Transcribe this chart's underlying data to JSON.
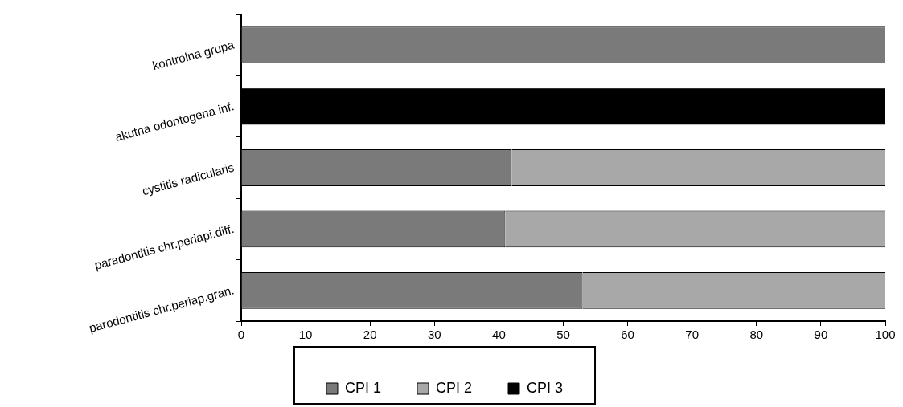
{
  "chart_data": {
    "type": "bar",
    "orientation": "horizontal",
    "stacked": true,
    "categories": [
      "kontrolna grupa",
      "akutna odontogena inf.",
      "cystitis radicularis",
      "paradontitis chr.periapi.diff.",
      "parodontitis chr.periap.gran."
    ],
    "series": [
      {
        "name": "CPI 1",
        "color": "#7a7a7a",
        "values": [
          100,
          0,
          42,
          41,
          53
        ]
      },
      {
        "name": "CPI 2",
        "color": "#a8a8a8",
        "values": [
          0,
          0,
          58,
          59,
          47
        ]
      },
      {
        "name": "CPI 3",
        "color": "#000000",
        "values": [
          0,
          100,
          0,
          0,
          0
        ]
      }
    ],
    "xlim": [
      0,
      100
    ],
    "xticks": [
      0,
      10,
      20,
      30,
      40,
      50,
      60,
      70,
      80,
      90,
      100
    ],
    "grid": false,
    "legend": "bottom"
  }
}
